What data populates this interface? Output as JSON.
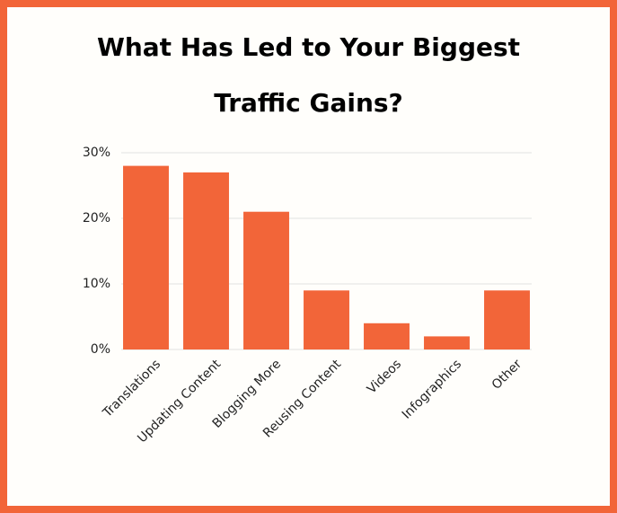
{
  "chart_data": {
    "type": "bar",
    "title": "What Has Led to Your Biggest Traffic Gains?",
    "categories": [
      "Translations",
      "Updating Content",
      "Blogging More",
      "Reusing Content",
      "Videos",
      "Infographics",
      "Other"
    ],
    "values": [
      28,
      27,
      21,
      9,
      4,
      2,
      9
    ],
    "color": "#f26539",
    "ylim": [
      0,
      30
    ],
    "yticks": [
      {
        "value": 0,
        "label": "0%"
      },
      {
        "value": 10,
        "label": "10%"
      },
      {
        "value": 20,
        "label": "20%"
      },
      {
        "value": 30,
        "label": "30%"
      }
    ],
    "grid": true
  }
}
